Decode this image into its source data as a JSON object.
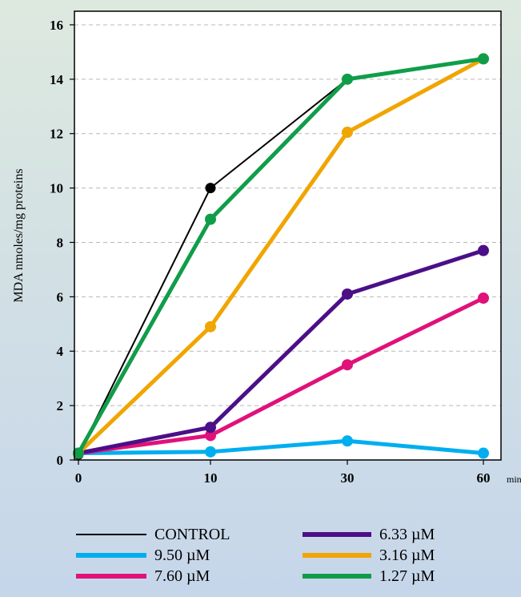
{
  "chart_data": {
    "type": "line",
    "x": [
      "0",
      "10",
      "30",
      "60"
    ],
    "x_unit": "min",
    "ylabel": "MDA nmoles/mg proteins",
    "ylim": [
      0,
      16.5
    ],
    "yticks": [
      0,
      2,
      4,
      6,
      8,
      10,
      12,
      14,
      16
    ],
    "grid": "dashed horizontal",
    "legend_position": "below",
    "series": [
      {
        "name": "CONTROL",
        "color": "#000000",
        "values": [
          0.2,
          10.0,
          14.0,
          null
        ],
        "thin": true
      },
      {
        "name": "9.50 µM",
        "color": "#00aeef",
        "values": [
          0.25,
          0.3,
          0.7,
          0.25
        ]
      },
      {
        "name": "7.60 µM",
        "color": "#e0117a",
        "values": [
          0.25,
          0.9,
          3.5,
          5.95
        ]
      },
      {
        "name": "6.33 µM",
        "color": "#4b0f87",
        "values": [
          0.25,
          1.2,
          6.1,
          7.7
        ]
      },
      {
        "name": "3.16 µM",
        "color": "#f0a500",
        "values": [
          0.25,
          4.9,
          12.05,
          14.75
        ]
      },
      {
        "name": "1.27 µM",
        "color": "#109d4a",
        "values": [
          0.25,
          8.85,
          14.0,
          14.75
        ]
      }
    ]
  }
}
